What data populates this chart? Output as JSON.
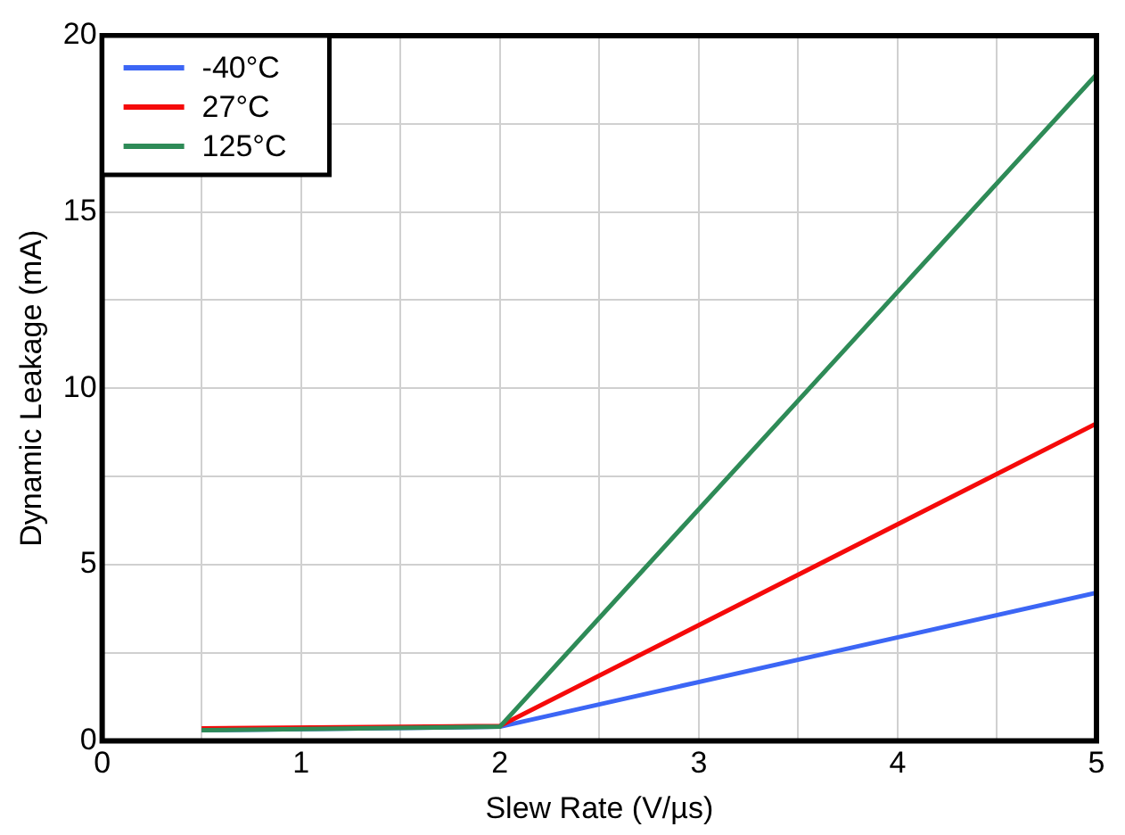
{
  "chart_data": {
    "type": "line",
    "xlabel": "Slew Rate (V/µs)",
    "ylabel": "Dynamic Leakage (mA)",
    "x": [
      0.5,
      2,
      5
    ],
    "series": [
      {
        "name": "-40°C",
        "color": "#3c66f5",
        "values": [
          0.3,
          0.4,
          4.2
        ]
      },
      {
        "name": "27°C",
        "color": "#f50a0a",
        "values": [
          0.35,
          0.42,
          9.0
        ]
      },
      {
        "name": "125°C",
        "color": "#2e8b57",
        "values": [
          0.3,
          0.4,
          18.9
        ]
      }
    ],
    "xlim": [
      0,
      5
    ],
    "xticks": [
      0,
      {
        "value": 0.5,
        "label": null
      },
      1,
      {
        "value": 1.5,
        "label": null
      },
      2,
      {
        "value": 2.5,
        "label": null
      },
      3,
      {
        "value": 3.5,
        "label": null
      },
      4,
      {
        "value": 4.5,
        "label": null
      },
      5
    ],
    "ylim": [
      0,
      20
    ],
    "yticks": [
      0,
      {
        "value": 2.5,
        "label": null
      },
      5,
      {
        "value": 7.5,
        "label": null
      },
      10,
      {
        "value": 12.5,
        "label": null
      },
      15,
      {
        "value": 17.5,
        "label": null
      },
      20
    ],
    "grid": true,
    "legend": "top left",
    "marker": "none",
    "line_style": "solid"
  }
}
